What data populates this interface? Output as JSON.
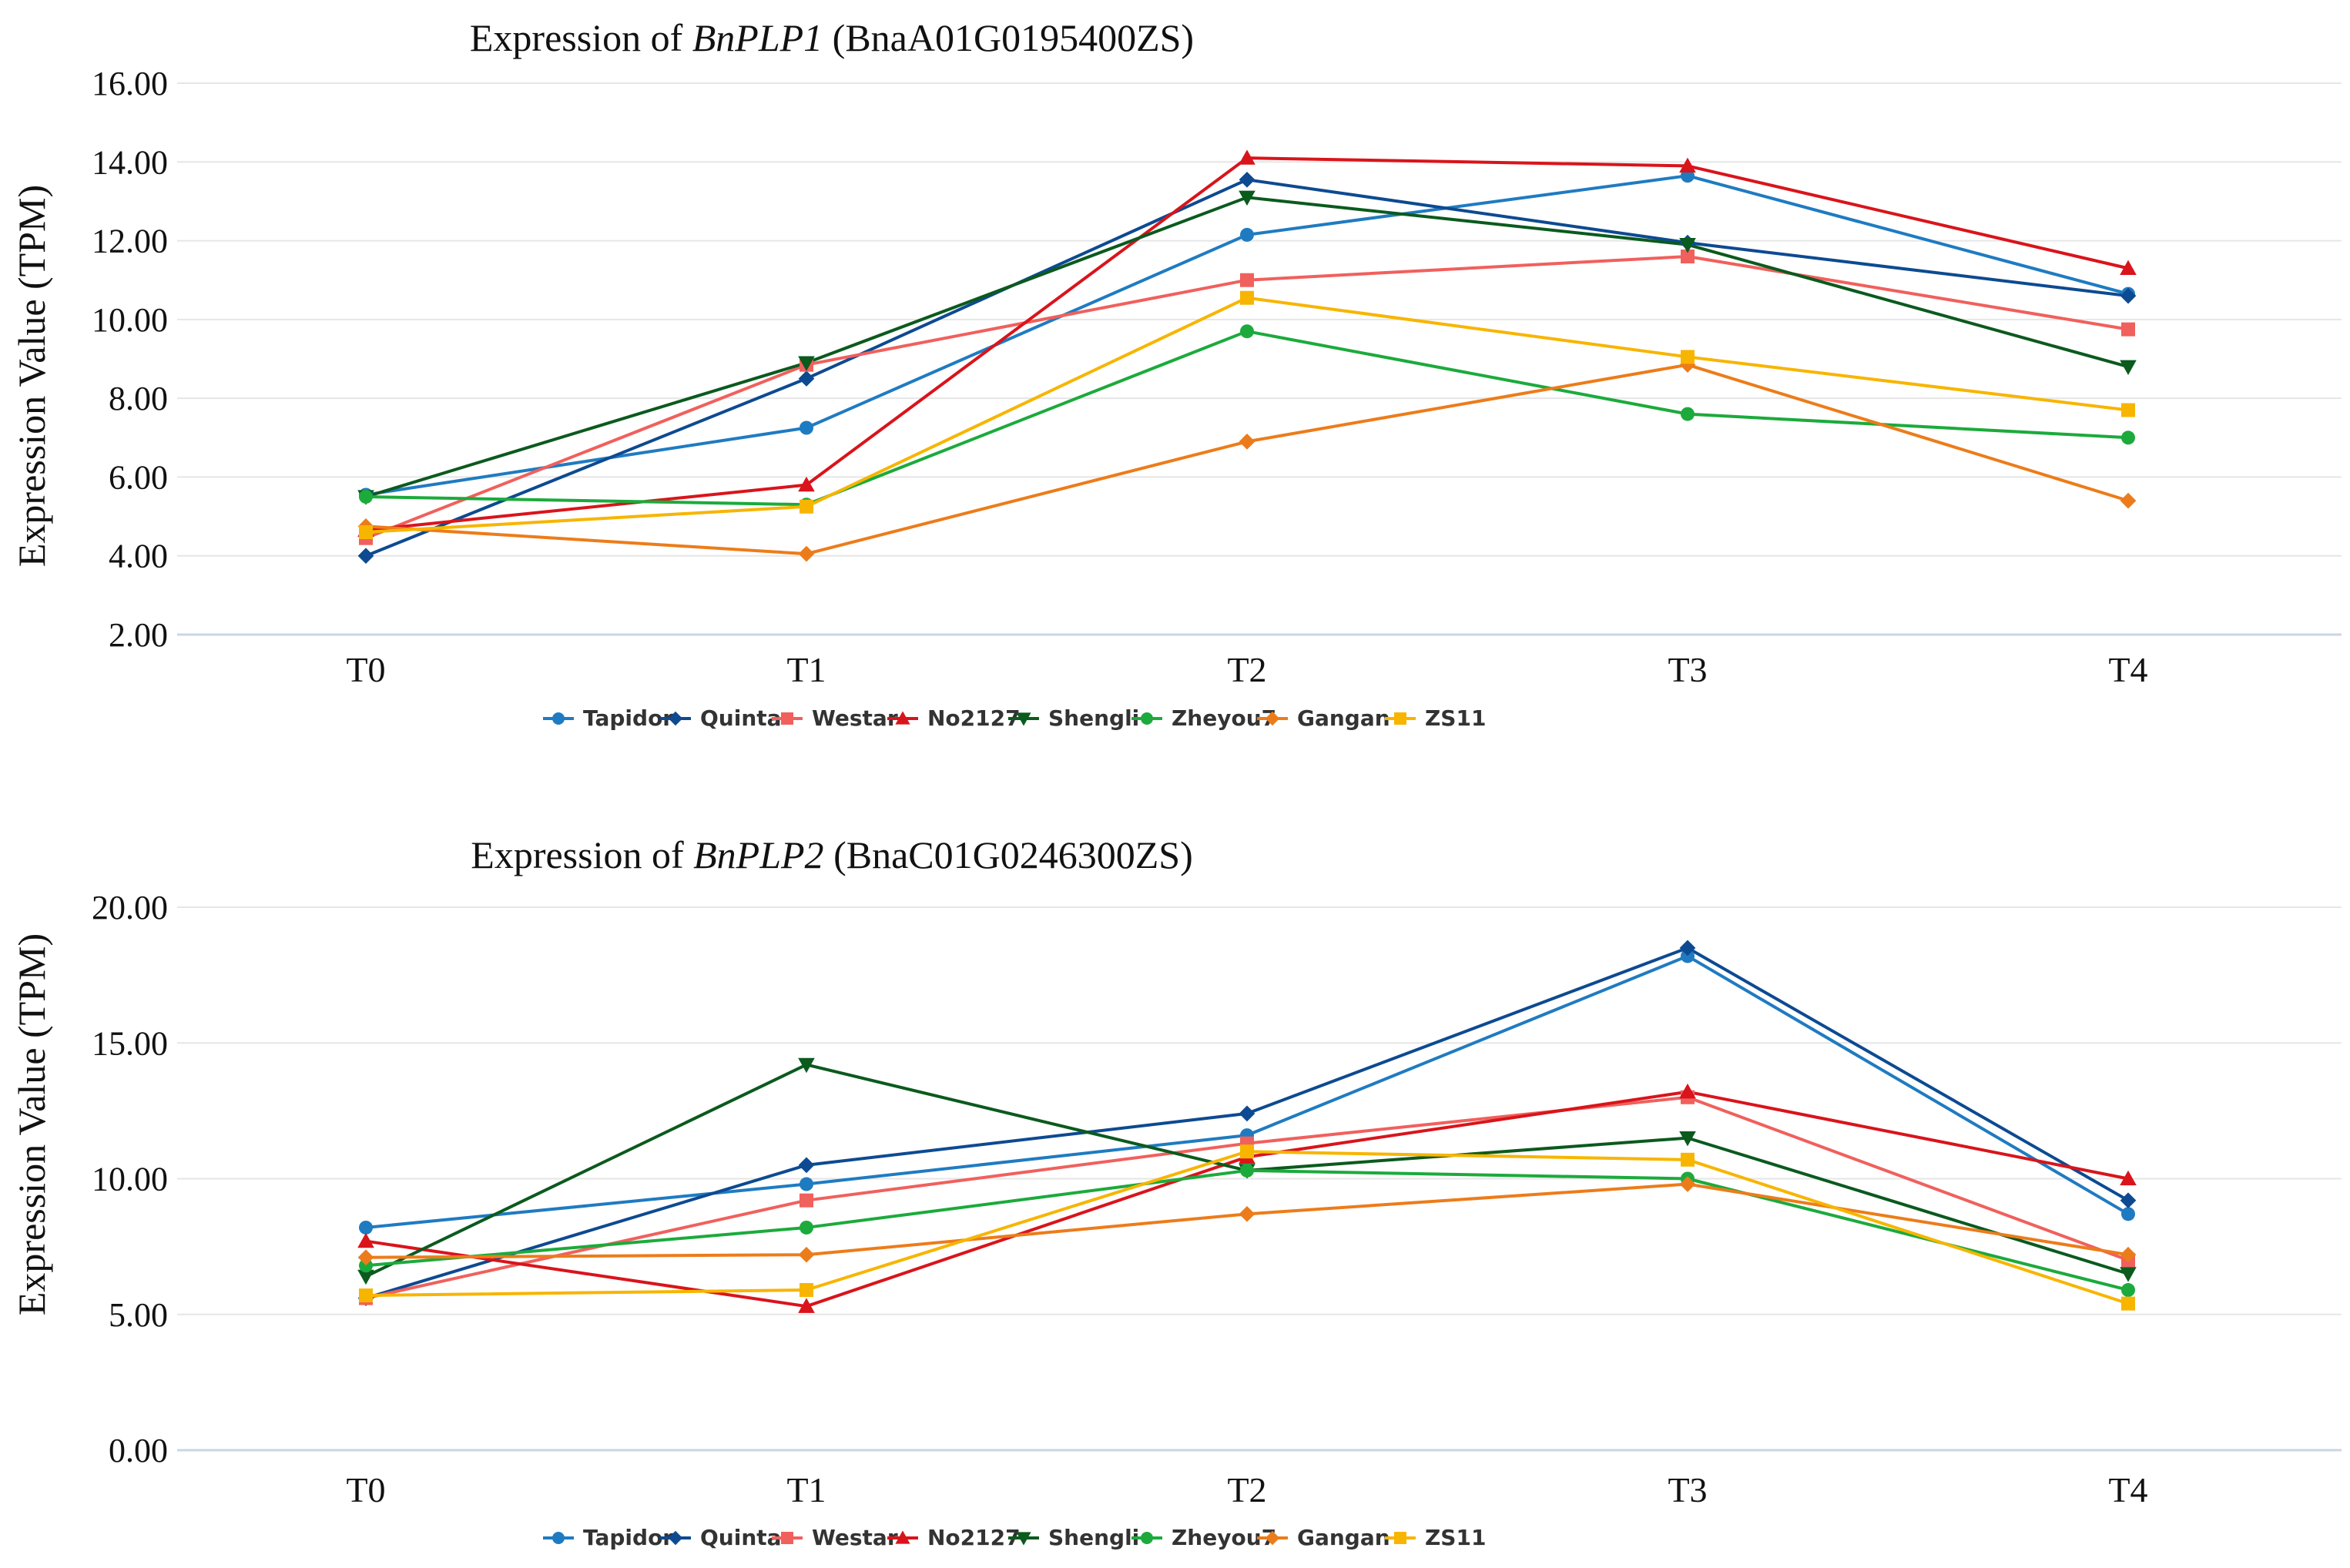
{
  "chart_data": [
    {
      "type": "line",
      "title_prefix": "Expression of ",
      "title_gene": "BnPLP1",
      "title_suffix": " (BnaA01G0195400ZS)",
      "ylabel": "Expression Value (TPM)",
      "xlabel": "",
      "categories": [
        "T0",
        "T1",
        "T2",
        "T3",
        "T4"
      ],
      "ylim": [
        2,
        16
      ],
      "yticks": [
        2,
        4,
        6,
        8,
        10,
        12,
        14,
        16
      ],
      "ytick_labels": [
        "2.00",
        "4.00",
        "6.00",
        "8.00",
        "10.00",
        "12.00",
        "14.00",
        "16.00"
      ],
      "legend_position": "bottom",
      "series": [
        {
          "name": "Tapidor",
          "color": "#1f7bc1",
          "marker": "circle",
          "values": [
            5.55,
            7.25,
            12.15,
            13.65,
            10.65
          ]
        },
        {
          "name": "Quinta",
          "color": "#0d4a91",
          "marker": "diamond",
          "values": [
            4.0,
            8.5,
            13.55,
            11.95,
            10.6
          ]
        },
        {
          "name": "Westar",
          "color": "#f0605d",
          "marker": "square",
          "values": [
            4.45,
            8.85,
            11.0,
            11.6,
            9.75
          ]
        },
        {
          "name": "No2127",
          "color": "#d9141b",
          "marker": "triangle-up",
          "values": [
            4.65,
            5.8,
            14.1,
            13.9,
            11.3
          ]
        },
        {
          "name": "Shengli",
          "color": "#0b5a1e",
          "marker": "triangle-down",
          "values": [
            5.5,
            8.9,
            13.1,
            11.9,
            8.8
          ]
        },
        {
          "name": "Zheyou7",
          "color": "#1caa3c",
          "marker": "circle",
          "values": [
            5.5,
            5.3,
            9.7,
            7.6,
            7.0
          ]
        },
        {
          "name": "Gangan",
          "color": "#ec7c1a",
          "marker": "diamond",
          "values": [
            4.75,
            4.05,
            6.9,
            8.85,
            5.4
          ]
        },
        {
          "name": "ZS11",
          "color": "#f7b500",
          "marker": "square",
          "values": [
            4.6,
            5.25,
            10.55,
            9.05,
            7.7
          ]
        }
      ]
    },
    {
      "type": "line",
      "title_prefix": "Expression of ",
      "title_gene": "BnPLP2",
      "title_suffix": " (BnaC01G0246300ZS)",
      "ylabel": "Expression Value (TPM)",
      "xlabel": "",
      "categories": [
        "T0",
        "T1",
        "T2",
        "T3",
        "T4"
      ],
      "ylim": [
        0,
        20
      ],
      "yticks": [
        0,
        5,
        10,
        15,
        20
      ],
      "ytick_labels": [
        "0.00",
        "5.00",
        "10.00",
        "15.00",
        "20.00"
      ],
      "legend_position": "bottom",
      "series": [
        {
          "name": "Tapidor",
          "color": "#1f7bc1",
          "marker": "circle",
          "values": [
            8.2,
            9.8,
            11.6,
            18.2,
            8.7
          ]
        },
        {
          "name": "Quinta",
          "color": "#0d4a91",
          "marker": "diamond",
          "values": [
            5.6,
            10.5,
            12.4,
            18.5,
            9.2
          ]
        },
        {
          "name": "Westar",
          "color": "#f0605d",
          "marker": "square",
          "values": [
            5.6,
            9.2,
            11.3,
            13.0,
            7.0
          ]
        },
        {
          "name": "No2127",
          "color": "#d9141b",
          "marker": "triangle-up",
          "values": [
            7.7,
            5.3,
            10.8,
            13.2,
            10.0
          ]
        },
        {
          "name": "Shengli",
          "color": "#0b5a1e",
          "marker": "triangle-down",
          "values": [
            6.4,
            14.2,
            10.3,
            11.5,
            6.5
          ]
        },
        {
          "name": "Zheyou7",
          "color": "#1caa3c",
          "marker": "circle",
          "values": [
            6.8,
            8.2,
            10.3,
            10.0,
            5.9
          ]
        },
        {
          "name": "Gangan",
          "color": "#ec7c1a",
          "marker": "diamond",
          "values": [
            7.1,
            7.2,
            8.7,
            9.8,
            7.2
          ]
        },
        {
          "name": "ZS11",
          "color": "#f7b500",
          "marker": "square",
          "values": [
            5.7,
            5.9,
            11.0,
            10.7,
            5.4
          ]
        }
      ]
    }
  ]
}
